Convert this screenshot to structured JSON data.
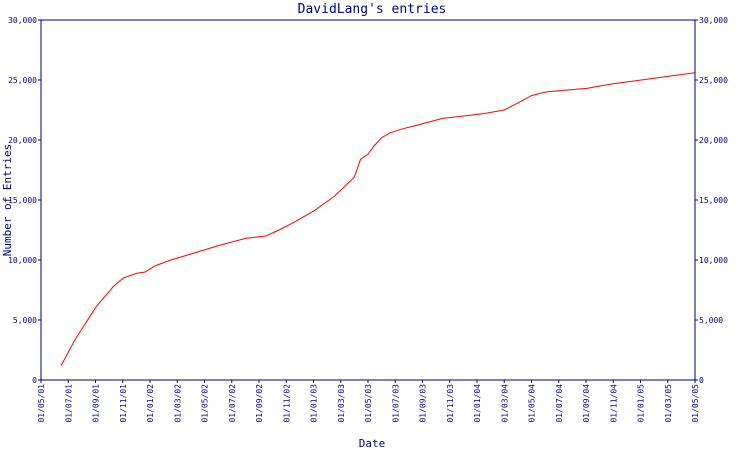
{
  "chart_data": {
    "type": "line",
    "title": "DavidLang's entries",
    "xlabel": "Date",
    "ylabel": "Number of Entries",
    "ylim": [
      0,
      30000
    ],
    "y_ticks": [
      0,
      5000,
      10000,
      15000,
      20000,
      25000,
      30000
    ],
    "y_tick_labels": [
      "0",
      "5,000",
      "10,000",
      "15,000",
      "20,000",
      "25,000",
      "30,000"
    ],
    "x_tick_labels": [
      "01/05/01",
      "01/07/01",
      "01/09/01",
      "01/11/01",
      "01/01/02",
      "01/03/02",
      "01/05/02",
      "01/07/02",
      "01/09/02",
      "01/11/02",
      "01/01/03",
      "01/03/03",
      "01/05/03",
      "01/07/03",
      "01/09/03",
      "01/11/03",
      "01/01/04",
      "01/03/04",
      "01/05/04",
      "01/07/04",
      "01/09/04",
      "01/11/04",
      "01/01/05",
      "01/03/05",
      "01/05/05"
    ],
    "xlim": [
      "2001-05-01",
      "2005-05-01"
    ],
    "series": [
      {
        "color": "#ff0000",
        "x": [
          "2001-06-15",
          "2001-07-15",
          "2001-09-01",
          "2001-10-10",
          "2001-11-01",
          "2001-12-01",
          "2001-12-20",
          "2002-01-10",
          "2002-02-15",
          "2002-04-01",
          "2002-06-01",
          "2002-08-01",
          "2002-09-15",
          "2002-10-15",
          "2002-11-15",
          "2003-01-01",
          "2003-02-15",
          "2003-04-01",
          "2003-04-15",
          "2003-05-01",
          "2003-05-15",
          "2003-06-01",
          "2003-06-20",
          "2003-07-15",
          "2003-08-15",
          "2003-09-15",
          "2003-10-15",
          "2003-12-01",
          "2004-01-15",
          "2004-03-01",
          "2004-04-01",
          "2004-05-01",
          "2004-06-01",
          "2004-07-01",
          "2004-09-01",
          "2004-11-01",
          "2005-01-01",
          "2005-03-01",
          "2005-05-01"
        ],
        "y": [
          1200,
          3300,
          6100,
          7800,
          8500,
          8900,
          9000,
          9500,
          10000,
          10500,
          11200,
          11800,
          12000,
          12500,
          13100,
          14100,
          15300,
          16900,
          18400,
          18800,
          19500,
          20200,
          20600,
          20900,
          21200,
          21500,
          21800,
          22000,
          22200,
          22500,
          23100,
          23700,
          24000,
          24100,
          24300,
          24700,
          25000,
          25300,
          25600
        ]
      }
    ],
    "grid": false
  }
}
